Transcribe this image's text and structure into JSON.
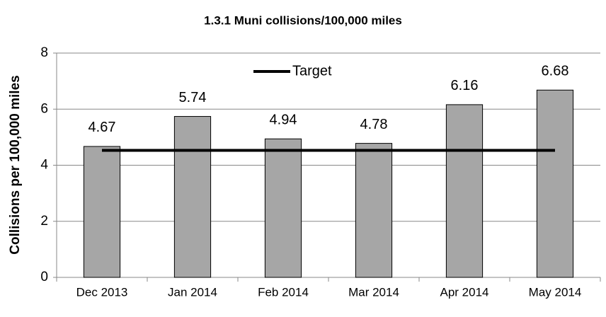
{
  "chart_data": {
    "type": "bar",
    "title": "1.3.1 Muni collisions/100,000 miles",
    "y_label": "Collisions per 100,000 miles",
    "categories": [
      "Dec 2013",
      "Jan 2014",
      "Feb 2014",
      "Mar 2014",
      "Apr 2014",
      "May 2014"
    ],
    "values": [
      4.67,
      5.74,
      4.94,
      4.78,
      6.16,
      6.68
    ],
    "color": "#a6a6a6",
    "series": [
      {
        "name": "Target",
        "color": "#000000",
        "values": [
          4.53,
          4.53,
          4.53,
          4.53,
          4.53,
          4.53
        ]
      }
    ],
    "ylim": [
      0,
      8
    ],
    "yticks": [
      0,
      2,
      4,
      6,
      8
    ],
    "grid": true,
    "legend": "top"
  }
}
